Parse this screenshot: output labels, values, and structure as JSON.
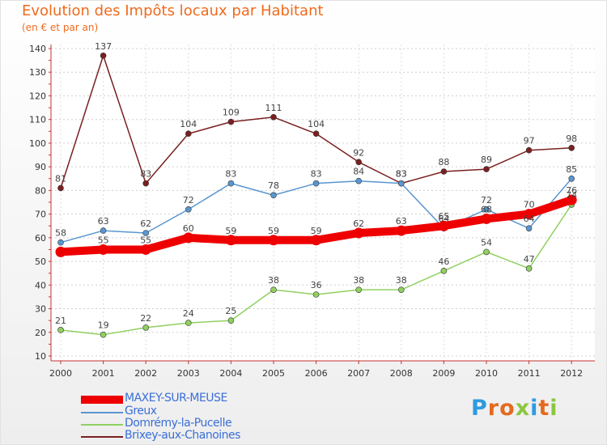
{
  "title": "Evolution des Impôts locaux par Habitant",
  "subtitle": "(en € et par an)",
  "logo": {
    "text": "Proxiti",
    "letters": [
      {
        "ch": "P",
        "color": "#2d9be0"
      },
      {
        "ch": "r",
        "color": "#e46a1e"
      },
      {
        "ch": "o",
        "color": "#e46a1e"
      },
      {
        "ch": "x",
        "color": "#8cc63f"
      },
      {
        "ch": "i",
        "color": "#2d9be0"
      },
      {
        "ch": "t",
        "color": "#e46a1e"
      },
      {
        "ch": "i",
        "color": "#8cc63f"
      }
    ]
  },
  "chart_data": {
    "type": "line",
    "title": "Evolution des Impôts locaux par Habitant",
    "subtitle": "(en € et par an)",
    "x": [
      "2000",
      "2001",
      "2002",
      "2003",
      "2004",
      "2005",
      "2006",
      "2007",
      "2008",
      "2009",
      "2010",
      "2011",
      "2012"
    ],
    "ylim": [
      10,
      140
    ],
    "yticks": [
      10,
      20,
      30,
      40,
      50,
      60,
      70,
      80,
      90,
      100,
      110,
      120,
      130,
      140
    ],
    "grid": true,
    "legend_position": "bottom-left",
    "series": [
      {
        "name": "MAXEY-SUR-MEUSE",
        "color": "#ee0000",
        "thick": true,
        "values": [
          54,
          55,
          55,
          60,
          59,
          59,
          59,
          62,
          63,
          65,
          68,
          70,
          76
        ],
        "labels": [
          "",
          "55",
          "55",
          "60",
          "59",
          "59",
          "59",
          "62",
          "63",
          "",
          "",
          "70",
          ""
        ]
      },
      {
        "name": "Greux",
        "color": "#5a96d0",
        "thick": false,
        "values": [
          58,
          63,
          62,
          72,
          83,
          78,
          83,
          84,
          83,
          64,
          72,
          64,
          85
        ],
        "labels": [
          "58",
          "63",
          "62",
          "72",
          "83",
          "78",
          "83",
          "84",
          "83",
          "64",
          "72",
          "64",
          "85"
        ]
      },
      {
        "name": "Domrémy-la-Pucelle",
        "color": "#90d060",
        "thick": false,
        "values": [
          21,
          19,
          22,
          24,
          25,
          38,
          36,
          38,
          38,
          46,
          54,
          47,
          74
        ],
        "labels": [
          "21",
          "19",
          "22",
          "24",
          "25",
          "38",
          "36",
          "38",
          "38",
          "46",
          "54",
          "47",
          ""
        ]
      },
      {
        "name": "Brixey-aux-Chanoines",
        "color": "#7a2020",
        "thick": false,
        "values": [
          81,
          137,
          83,
          104,
          109,
          111,
          104,
          92,
          83,
          88,
          89,
          97,
          98
        ],
        "labels": [
          "81",
          "137",
          "83",
          "104",
          "109",
          "111",
          "104",
          "92",
          "83",
          "88",
          "89",
          "97",
          "98"
        ]
      }
    ],
    "extra_labels": [
      {
        "x": "2009",
        "y": 65,
        "text": "65"
      },
      {
        "x": "2010",
        "y": 68,
        "text": "68"
      },
      {
        "x": "2012",
        "y": 76,
        "text": "76"
      },
      {
        "x": "2012",
        "y": 74,
        "text": "74"
      }
    ]
  }
}
